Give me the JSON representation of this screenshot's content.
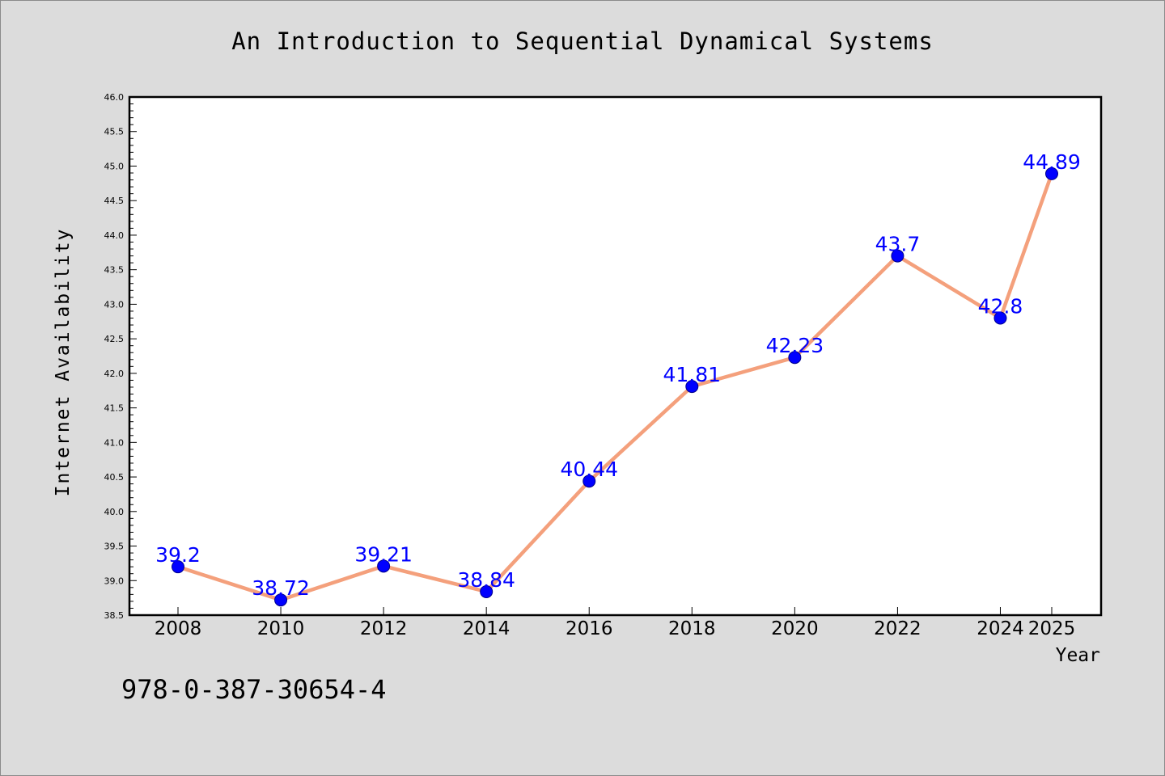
{
  "chart_data": {
    "type": "line",
    "title": "An Introduction to Sequential Dynamical Systems",
    "xlabel": "Year",
    "ylabel": "Internet Availability",
    "x": [
      "2008",
      "2010",
      "2012",
      "2014",
      "2016",
      "2018",
      "2020",
      "2022",
      "2024",
      "2025"
    ],
    "series": [
      {
        "values": [
          39.2,
          38.72,
          39.21,
          38.84,
          40.44,
          41.81,
          42.23,
          43.7,
          42.8,
          44.89
        ],
        "data_labels": [
          "39.2",
          "38.72",
          "39.21",
          "38.84",
          "40.44",
          "41.81",
          "42.23",
          "43.7",
          "42.8",
          "44.89"
        ]
      }
    ],
    "ylim": [
      38.5,
      46.0
    ],
    "yticks": [
      "38.5",
      "39.0",
      "39.5",
      "40.0",
      "40.5",
      "41.0",
      "41.5",
      "42.0",
      "42.5",
      "43.0",
      "43.5",
      "44.0",
      "44.5",
      "45.0",
      "45.5",
      "46.0"
    ],
    "grid": false,
    "line_color": "#f4a07c",
    "marker_color": "#0000ff",
    "label_color": "#0000ff"
  },
  "footer": {
    "code": "978-0-387-30654-4"
  }
}
